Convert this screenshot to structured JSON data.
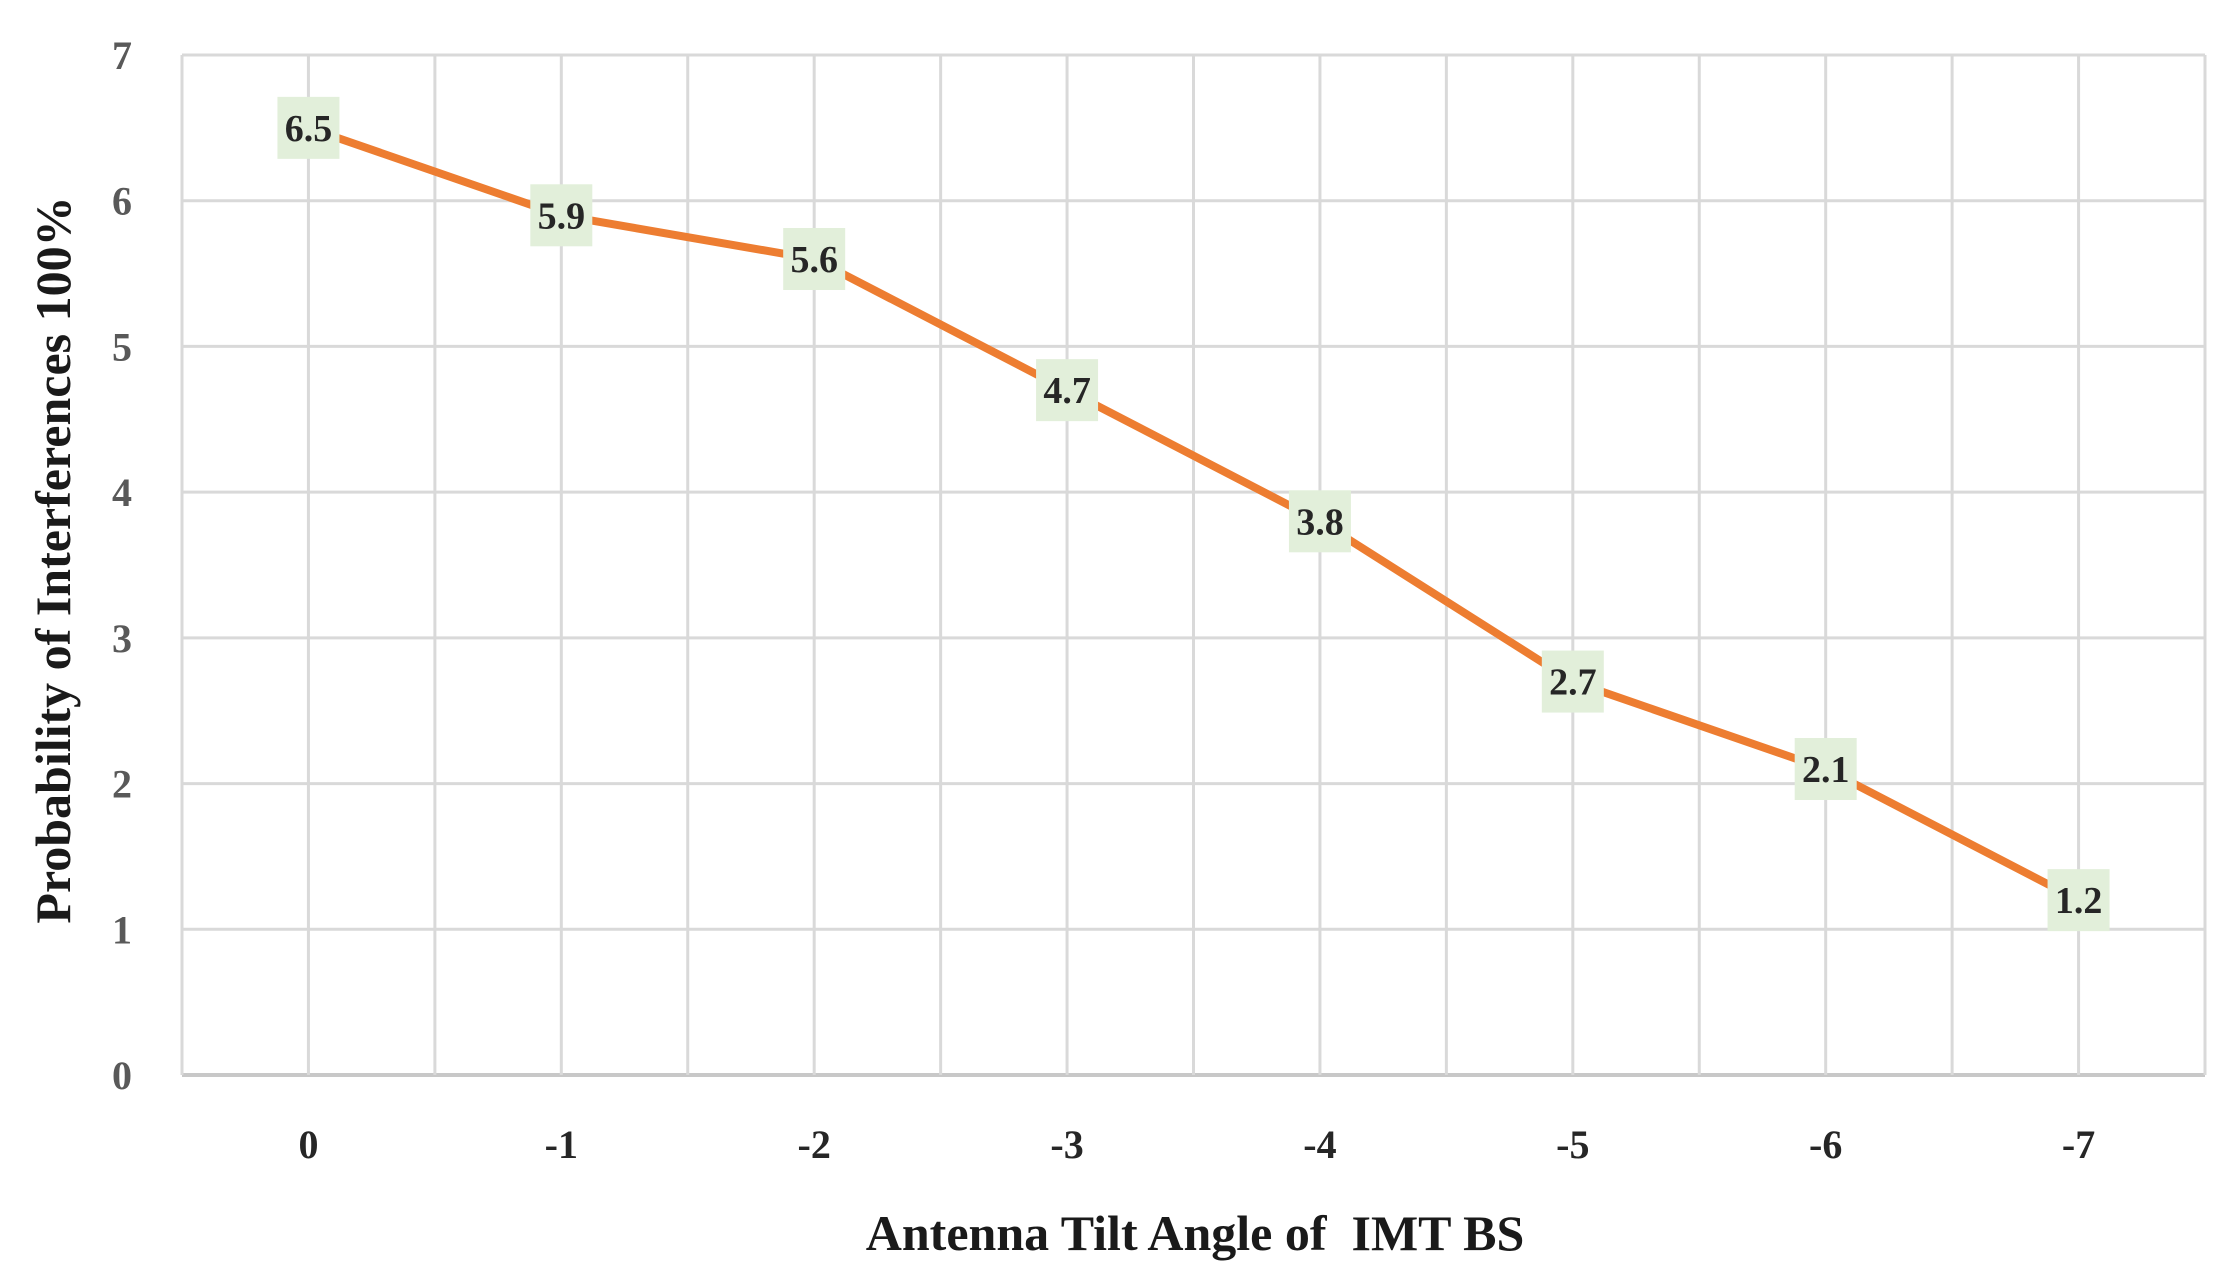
{
  "chart_data": {
    "type": "line",
    "title": "",
    "xlabel": "Antenna Tilt Angle of  IMT BS",
    "ylabel": "Probability of Interferences 100%",
    "categories": [
      "0",
      "-1",
      "-2",
      "-3",
      "-4",
      "-5",
      "-6",
      "-7"
    ],
    "series": [
      {
        "name": "Probability of Interferences",
        "values": [
          6.5,
          5.9,
          5.6,
          4.7,
          3.8,
          2.7,
          2.1,
          1.2
        ],
        "labels": [
          "6.5",
          "5.9",
          "5.6",
          "4.7",
          "3.8",
          "2.7",
          "2.1",
          "1.2"
        ]
      }
    ],
    "ylim": [
      0,
      7
    ],
    "yticks": [
      "0",
      "1",
      "2",
      "3",
      "4",
      "5",
      "6",
      "7"
    ],
    "grid": true,
    "line_color": "#ED7D31",
    "label_bg_color": "#E2EFDA",
    "grid_color": "#D9D9D9"
  }
}
